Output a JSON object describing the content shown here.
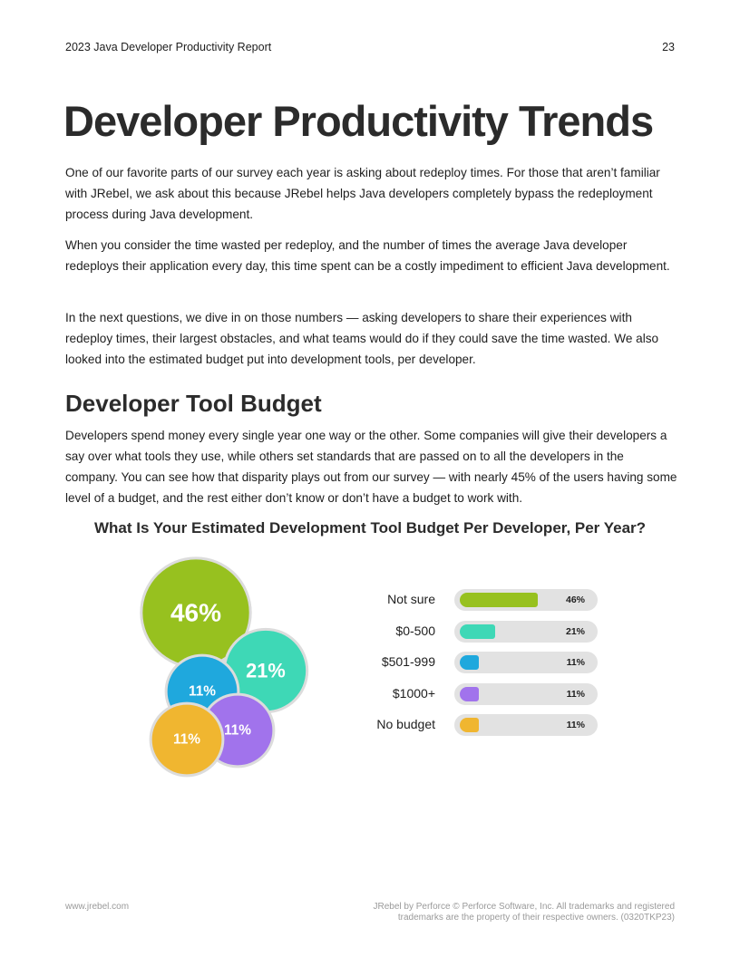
{
  "header": {
    "report_title": "2023 Java Developer Productivity Report",
    "page_number": "23"
  },
  "main": {
    "title": "Developer Productivity Trends",
    "paragraphs": [
      "One of our favorite parts of our survey each year is asking about redeploy times. For those that aren’t familiar with JRebel, we ask about this because JRebel helps Java developers completely bypass the redeployment process during Java development.",
      "When you consider the time wasted per redeploy, and the number of times the average Java developer redeploys their application every day, this time spent can be a costly impediment to efficient Java development.",
      "In the next questions, we dive in on those numbers — asking developers to share their experiences with redeploy times, their largest obstacles, and what teams would do if they could save the time wasted. We also looked into the estimated budget put into development tools, per developer."
    ]
  },
  "section": {
    "title": "Developer Tool Budget",
    "paragraph": "Developers spend money every single year one way or the other. Some companies will give their developers a say over what tools they use, while others set standards that are passed on to all the developers in the company. You can see how that disparity plays out from our survey — with nearly 45% of the users having some level of a budget, and the rest either don’t know or don’t have a budget to work with."
  },
  "chart_data": {
    "type": "bar",
    "title": "What Is Your Estimated Development Tool Budget Per Developer, Per Year?",
    "categories": [
      "Not sure",
      "$0-500",
      "$501-999",
      "$1000+",
      "No budget"
    ],
    "values": [
      46,
      21,
      11,
      11,
      11
    ],
    "value_labels": [
      "46%",
      "21%",
      "11%",
      "11%",
      "11%"
    ],
    "colors": [
      "#97c11f",
      "#3ed8b6",
      "#1fa8dd",
      "#a173ec",
      "#f0b630"
    ],
    "unit": "%",
    "ylim": [
      0,
      100
    ],
    "companion_visual": "bubble chart"
  },
  "footer": {
    "left": "www.jrebel.com",
    "right_line1": "JRebel by Perforce © Perforce Software, Inc. All trademarks and registered",
    "right_line2": "trademarks are the property of their respective owners. (0320TKP23)"
  }
}
